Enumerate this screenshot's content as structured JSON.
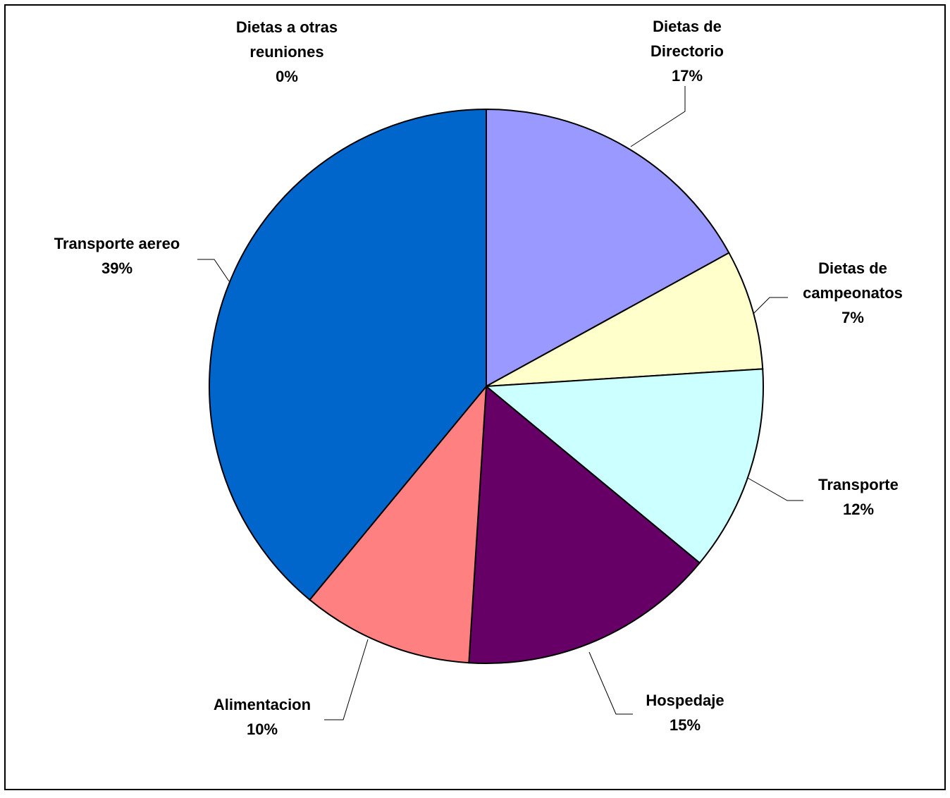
{
  "chart_data": {
    "type": "pie",
    "title": "",
    "slices": [
      {
        "label_lines": [
          "Dietas de",
          "Directorio"
        ],
        "pct_label": "17%",
        "value": 17,
        "color": "#9999FF"
      },
      {
        "label_lines": [
          "Dietas de",
          "campeonatos"
        ],
        "pct_label": "7%",
        "value": 7,
        "color": "#FFFFCC"
      },
      {
        "label_lines": [
          "Transporte"
        ],
        "pct_label": "12%",
        "value": 12,
        "color": "#CCFFFF"
      },
      {
        "label_lines": [
          "Hospedaje"
        ],
        "pct_label": "15%",
        "value": 15,
        "color": "#660066"
      },
      {
        "label_lines": [
          "Alimentacion"
        ],
        "pct_label": "10%",
        "value": 10,
        "color": "#FF8080"
      },
      {
        "label_lines": [
          "Transporte aereo"
        ],
        "pct_label": "39%",
        "value": 39,
        "color": "#0066CC"
      },
      {
        "label_lines": [
          "Dietas a otras",
          "reuniones"
        ],
        "pct_label": "0%",
        "value": 0,
        "color": "#FFFFFF"
      }
    ]
  }
}
